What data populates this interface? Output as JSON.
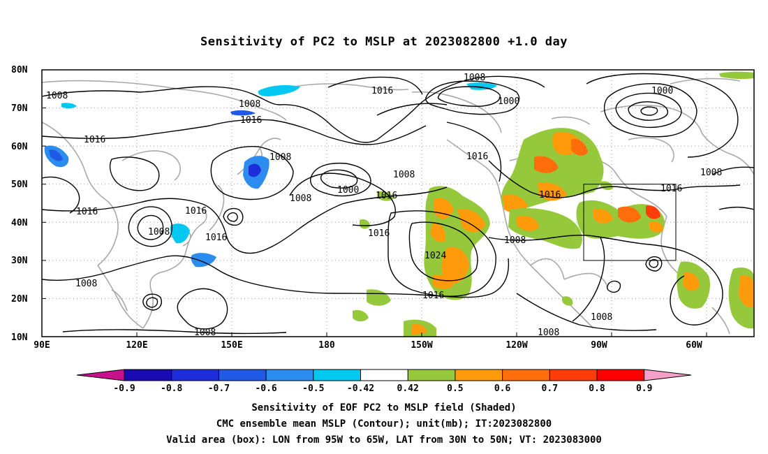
{
  "title": "Sensitivity of PC2 to MSLP at 2023082800 +1.0 day",
  "axes": {
    "lat_labels": [
      "80N",
      "70N",
      "60N",
      "50N",
      "40N",
      "30N",
      "20N",
      "10N"
    ],
    "lon_labels": [
      "90E",
      "120E",
      "150E",
      "180",
      "150W",
      "120W",
      "90W",
      "60W"
    ]
  },
  "contour_labels": {
    "l1": "1008",
    "l2": "1016",
    "l3": "1008",
    "l4": "1016",
    "l5": "1016",
    "l6": "1008",
    "l7": "1000",
    "l8": "1008",
    "l9": "1016",
    "l10": "1008",
    "l11": "1016",
    "l12": "1008",
    "l13": "1016",
    "l14": "1024",
    "l15": "1016",
    "l16": "1008",
    "l17": "1008",
    "l18": "1016",
    "l19": "1008",
    "l20": "1000",
    "l21": "1016",
    "l22": "1008",
    "l23": "1016",
    "l24": "1016",
    "l25": "1008",
    "l26": "1008"
  },
  "colorbar": {
    "ticks": [
      "-0.9",
      "-0.8",
      "-0.7",
      "-0.6",
      "-0.5",
      "-0.42",
      "0.42",
      "0.5",
      "0.6",
      "0.7",
      "0.8",
      "0.9"
    ],
    "colors": {
      "lt_m09": "#c8108c",
      "m09_m08": "#1a0ab4",
      "m08_m07": "#1e2ddc",
      "m07_m06": "#1e5ae6",
      "m06_m05": "#2d8cf0",
      "m05_m042": "#00c8f0",
      "m042_042": "#ffffff",
      "042_05": "#96c83c",
      "05_06": "#ff9b0a",
      "06_07": "#ff6e0a",
      "07_08": "#ff3c0a",
      "08_09": "#ff0000",
      "gt_09": "#f5a0c8"
    }
  },
  "valid_box": {
    "lon_from": "95W",
    "lon_to": "65W",
    "lat_from": "30N",
    "lat_to": "50N"
  },
  "captions": {
    "line1": "Sensitivity of EOF PC2 to MSLP field (Shaded)",
    "line2": "CMC ensemble mean MSLP (Contour); unit(mb); IT:2023082800",
    "line3": "Valid area (box): LON from 95W to 65W, LAT from 30N to 50N; VT: 2023083000"
  }
}
